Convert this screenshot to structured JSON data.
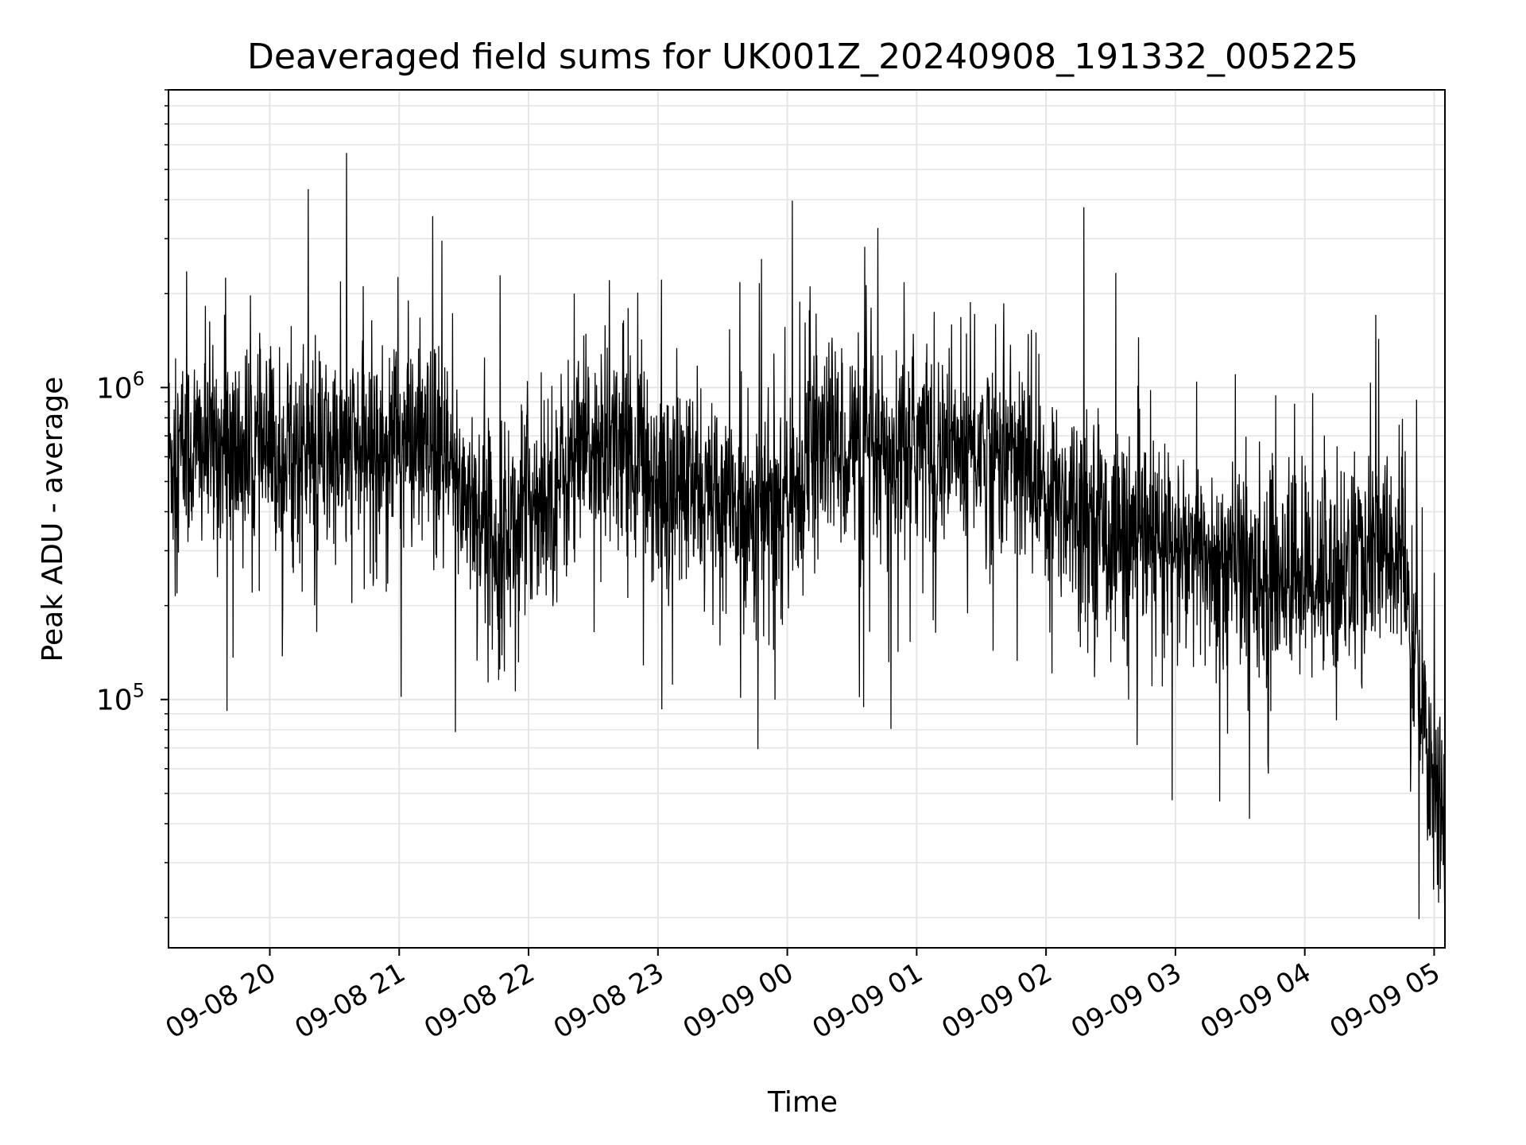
{
  "chart_data": {
    "type": "line",
    "title": "Deaveraged field sums for UK001Z_20240908_191332_005225",
    "xlabel": "Time",
    "ylabel": "Peak ADU - average",
    "x_range": [
      "2024-09-08 19:13",
      "2024-09-09 05:05"
    ],
    "x_ticks": [
      "09-08 20",
      "09-08 21",
      "09-08 22",
      "09-08 23",
      "09-09 00",
      "09-09 01",
      "09-09 02",
      "09-09 03",
      "09-09 04",
      "09-09 05"
    ],
    "x_tick_times": [
      "2024-09-08 20:00",
      "2024-09-08 21:00",
      "2024-09-08 22:00",
      "2024-09-08 23:00",
      "2024-09-09 00:00",
      "2024-09-09 01:00",
      "2024-09-09 02:00",
      "2024-09-09 03:00",
      "2024-09-09 04:00",
      "2024-09-09 05:00"
    ],
    "y_scale": "log",
    "ylim": [
      16000,
      9000000
    ],
    "y_ticks": [
      {
        "base": "10",
        "exp": "5",
        "value": 100000
      },
      {
        "base": "10",
        "exp": "6",
        "value": 1000000
      }
    ],
    "grid": true,
    "line_color": "#000000",
    "grid_color": "#e5e5e5",
    "series": [
      {
        "x": [
          "2024-09-08 19:13",
          "2024-09-08 19:30",
          "2024-09-08 19:45",
          "2024-09-08 20:00",
          "2024-09-08 20:15",
          "2024-09-08 20:30",
          "2024-09-08 20:45",
          "2024-09-08 21:00",
          "2024-09-08 21:15",
          "2024-09-08 21:30",
          "2024-09-08 21:45",
          "2024-09-08 22:00",
          "2024-09-08 22:15",
          "2024-09-08 22:30",
          "2024-09-08 22:45",
          "2024-09-08 23:00",
          "2024-09-08 23:15",
          "2024-09-08 23:30",
          "2024-09-08 23:45",
          "2024-09-09 00:00",
          "2024-09-09 00:15",
          "2024-09-09 00:30",
          "2024-09-09 00:45",
          "2024-09-09 01:00",
          "2024-09-09 01:15",
          "2024-09-09 01:30",
          "2024-09-09 01:45",
          "2024-09-09 02:00",
          "2024-09-09 02:15",
          "2024-09-09 02:30",
          "2024-09-09 02:45",
          "2024-09-09 03:00",
          "2024-09-09 03:15",
          "2024-09-09 03:30",
          "2024-09-09 03:45",
          "2024-09-09 04:00",
          "2024-09-09 04:15",
          "2024-09-09 04:30",
          "2024-09-09 04:45",
          "2024-09-09 04:55",
          "2024-09-09 05:05"
        ],
        "y": [
          600000,
          650000,
          620000,
          600000,
          620000,
          600000,
          640000,
          700000,
          600000,
          480000,
          320000,
          420000,
          500000,
          650000,
          700000,
          500000,
          470000,
          420000,
          400000,
          420000,
          650000,
          650000,
          550000,
          700000,
          620000,
          650000,
          600000,
          480000,
          420000,
          350000,
          320000,
          300000,
          280000,
          270000,
          260000,
          250000,
          260000,
          280000,
          300000,
          80000,
          40000
        ]
      }
    ]
  }
}
